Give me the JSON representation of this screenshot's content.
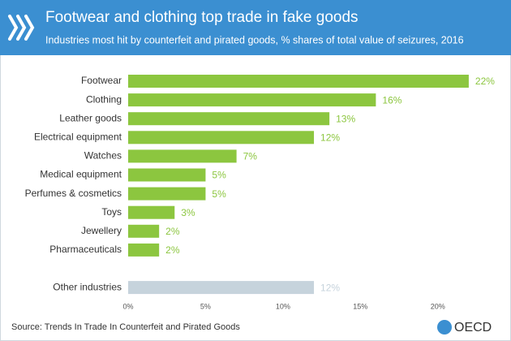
{
  "chart_data": {
    "type": "bar",
    "orientation": "horizontal",
    "title": "Footwear and clothing top trade in fake goods",
    "subtitle": "Industries most hit by counterfeit and pirated goods, % shares of total value of seizures, 2016",
    "source": "Source: Trends In Trade In Counterfeit and Pirated Goods",
    "logo_text": "OECD",
    "categories": [
      "Footwear",
      "Clothing",
      "Leather goods",
      "Electrical equipment",
      "Watches",
      "Medical equipment",
      "Perfumes & cosmetics",
      "Toys",
      "Jewellery",
      "Pharmaceuticals",
      null,
      "Other industries"
    ],
    "values": [
      22,
      16,
      13,
      12,
      7,
      5,
      5,
      3,
      2,
      2,
      null,
      12
    ],
    "value_labels": [
      "22%",
      "16%",
      "13%",
      "12%",
      "7%",
      "5%",
      "5%",
      "3%",
      "2%",
      "2%",
      null,
      "12%"
    ],
    "bar_colors": [
      "#8cc63f",
      "#8cc63f",
      "#8cc63f",
      "#8cc63f",
      "#8cc63f",
      "#8cc63f",
      "#8cc63f",
      "#8cc63f",
      "#8cc63f",
      "#8cc63f",
      null,
      "#c6d3dc"
    ],
    "xlim": [
      0,
      23
    ],
    "xticks": [
      {
        "value": 0,
        "label": "0%"
      },
      {
        "value": 5,
        "label": "5%"
      },
      {
        "value": 10,
        "label": "10%"
      },
      {
        "value": 15,
        "label": "15%"
      },
      {
        "value": 20,
        "label": "20%"
      }
    ],
    "grid": false
  }
}
